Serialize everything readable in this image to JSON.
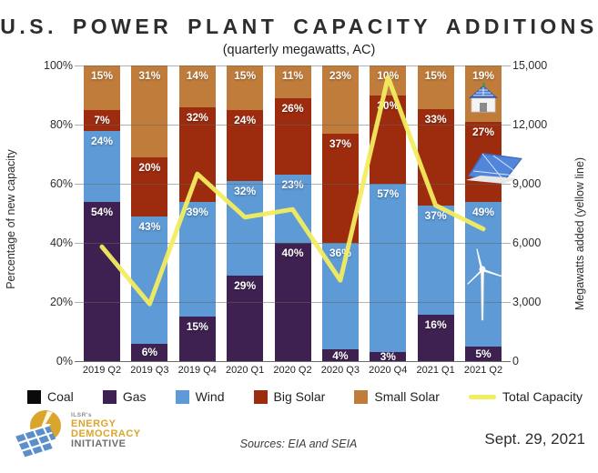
{
  "title": "U.S. POWER PLANT CAPACITY ADDITIONS",
  "subtitle": "(quarterly megawatts, AC)",
  "chart_data": {
    "type": "bar",
    "subtype": "stacked-percent-with-line",
    "categories": [
      "2019 Q2",
      "2019 Q3",
      "2019 Q4",
      "2020 Q1",
      "2020 Q2",
      "2020 Q3",
      "2020 Q4",
      "2021 Q1",
      "2021 Q2"
    ],
    "series": [
      {
        "name": "Coal",
        "color": "#0a0a0a",
        "values": [
          0,
          0,
          0,
          0,
          0,
          0,
          0,
          0,
          0
        ]
      },
      {
        "name": "Gas",
        "color": "#3e2151",
        "values": [
          54,
          6,
          15,
          29,
          40,
          4,
          3,
          16,
          5
        ]
      },
      {
        "name": "Wind",
        "color": "#5d9ad6",
        "values": [
          24,
          43,
          39,
          32,
          23,
          36,
          57,
          37,
          49
        ]
      },
      {
        "name": "Big Solar",
        "color": "#9d2c0f",
        "values": [
          7,
          20,
          32,
          24,
          26,
          37,
          30,
          33,
          27
        ]
      },
      {
        "name": "Small Solar",
        "color": "#c07c3a",
        "values": [
          15,
          31,
          14,
          15,
          11,
          23,
          10,
          15,
          19
        ]
      }
    ],
    "line_series": {
      "name": "Total Capacity",
      "color": "#f2ec60",
      "values_mw": [
        5800,
        2900,
        9500,
        7300,
        7700,
        4100,
        14400,
        7900,
        6700
      ]
    },
    "left_axis": {
      "label": "Percentage of new capacity",
      "ticks": [
        "100%",
        "80%",
        "60%",
        "40%",
        "20%",
        "0%"
      ],
      "range": [
        0,
        100
      ],
      "grid": true
    },
    "right_axis": {
      "label": "Megawatts added (yellow line)",
      "ticks": [
        "15,000",
        "12,000",
        "9,000",
        "6,000",
        "3,000",
        "0"
      ],
      "range": [
        0,
        15000
      ]
    },
    "legend_position": "bottom"
  },
  "legend": [
    {
      "label": "Coal",
      "color": "#0a0a0a",
      "type": "square"
    },
    {
      "label": "Gas",
      "color": "#3e2151",
      "type": "square"
    },
    {
      "label": "Wind",
      "color": "#5d9ad6",
      "type": "square"
    },
    {
      "label": "Big Solar",
      "color": "#9d2c0f",
      "type": "square"
    },
    {
      "label": "Small Solar",
      "color": "#c07c3a",
      "type": "square"
    },
    {
      "label": "Total Capacity",
      "color": "#f2ec60",
      "type": "line"
    }
  ],
  "icons": [
    {
      "name": "solar-house-icon"
    },
    {
      "name": "solar-array-icon"
    },
    {
      "name": "wind-turbine-icon"
    },
    {
      "name": "logo-sun-panel-icon"
    }
  ],
  "footer": {
    "logo": {
      "org_small": "ILSR's",
      "line1": "ENERGY",
      "line2": "DEMOCRACY",
      "line3": "INITIATIVE"
    },
    "sources": "Sources: EIA and SEIA",
    "date": "Sept. 29, 2021"
  },
  "colors": {
    "line_yellow": "#f2ec60",
    "logo_gold": "#d9a62b",
    "logo_blue": "#5b8fc9",
    "grid": "#646464"
  }
}
